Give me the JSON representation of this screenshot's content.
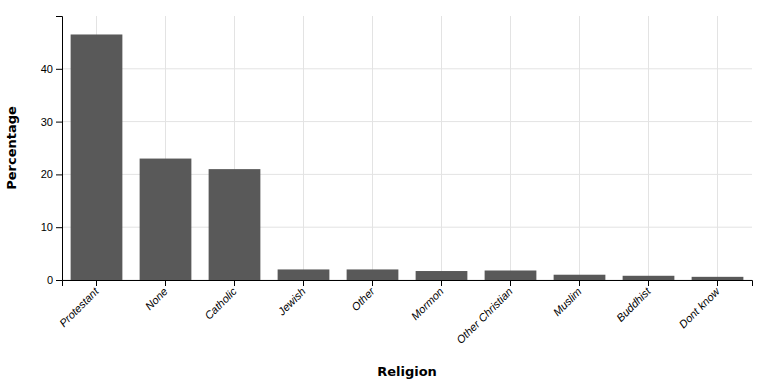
{
  "chart_data": {
    "type": "bar",
    "categories": [
      "Protestant",
      "None",
      "Catholic",
      "Jewish",
      "Other",
      "Mormon",
      "Other Christian",
      "Muslim",
      "Buddhist",
      "Dont know"
    ],
    "values": [
      46.5,
      23.0,
      21.0,
      2.0,
      2.0,
      1.7,
      1.8,
      1.0,
      0.8,
      0.6
    ],
    "color": "#595959",
    "xlabel": "Religion",
    "ylabel": "Percentage",
    "ylim": [
      0,
      50
    ],
    "yticks": [
      0,
      10,
      20,
      30,
      40
    ],
    "grid": true
  }
}
